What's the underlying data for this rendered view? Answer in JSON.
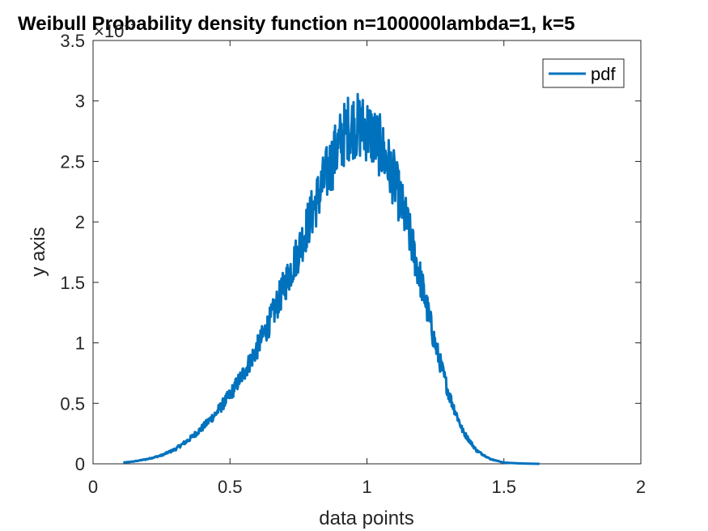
{
  "chart_data": {
    "type": "line",
    "title": "Weibull Probability density function n=100000lambda=1, k=5",
    "xlabel": "data points",
    "ylabel": "y axis",
    "y_exponent_label": "×10",
    "y_exponent_power": "-3",
    "xlim": [
      0,
      2
    ],
    "ylim": [
      0,
      0.0035
    ],
    "x_ticks": [
      0,
      0.5,
      1,
      1.5,
      2
    ],
    "x_tick_labels": [
      "0",
      "0.5",
      "1",
      "1.5",
      "2"
    ],
    "y_ticks": [
      0,
      0.0005,
      0.001,
      0.0015,
      0.002,
      0.0025,
      0.003,
      0.0035
    ],
    "y_tick_labels": [
      "0",
      "0.5",
      "1",
      "1.5",
      "2",
      "2.5",
      "3",
      "3.5"
    ],
    "grid": false,
    "legend_position": "top-right",
    "series": [
      {
        "name": "pdf",
        "color": "#0072BD",
        "x": [
          0.11,
          0.15,
          0.2,
          0.25,
          0.3,
          0.35,
          0.4,
          0.45,
          0.5,
          0.55,
          0.6,
          0.65,
          0.7,
          0.75,
          0.8,
          0.85,
          0.9,
          0.93,
          0.95,
          1.0,
          1.05,
          1.1,
          1.15,
          1.2,
          1.25,
          1.3,
          1.35,
          1.4,
          1.45,
          1.5,
          1.55,
          1.6,
          1.63
        ],
        "values": [
          1e-05,
          2e-05,
          4e-05,
          7e-05,
          0.00012,
          0.0002,
          0.0003,
          0.00042,
          0.00057,
          0.00075,
          0.00096,
          0.0012,
          0.00148,
          0.00176,
          0.00208,
          0.00238,
          0.00265,
          0.00278,
          0.0028,
          0.00277,
          0.00262,
          0.00235,
          0.00195,
          0.00148,
          0.00098,
          0.00057,
          0.00027,
          0.00011,
          4e-05,
          1e-05,
          4e-06,
          1e-06,
          0.0
        ],
        "noise_amplitude_fraction": 0.1
      }
    ]
  }
}
